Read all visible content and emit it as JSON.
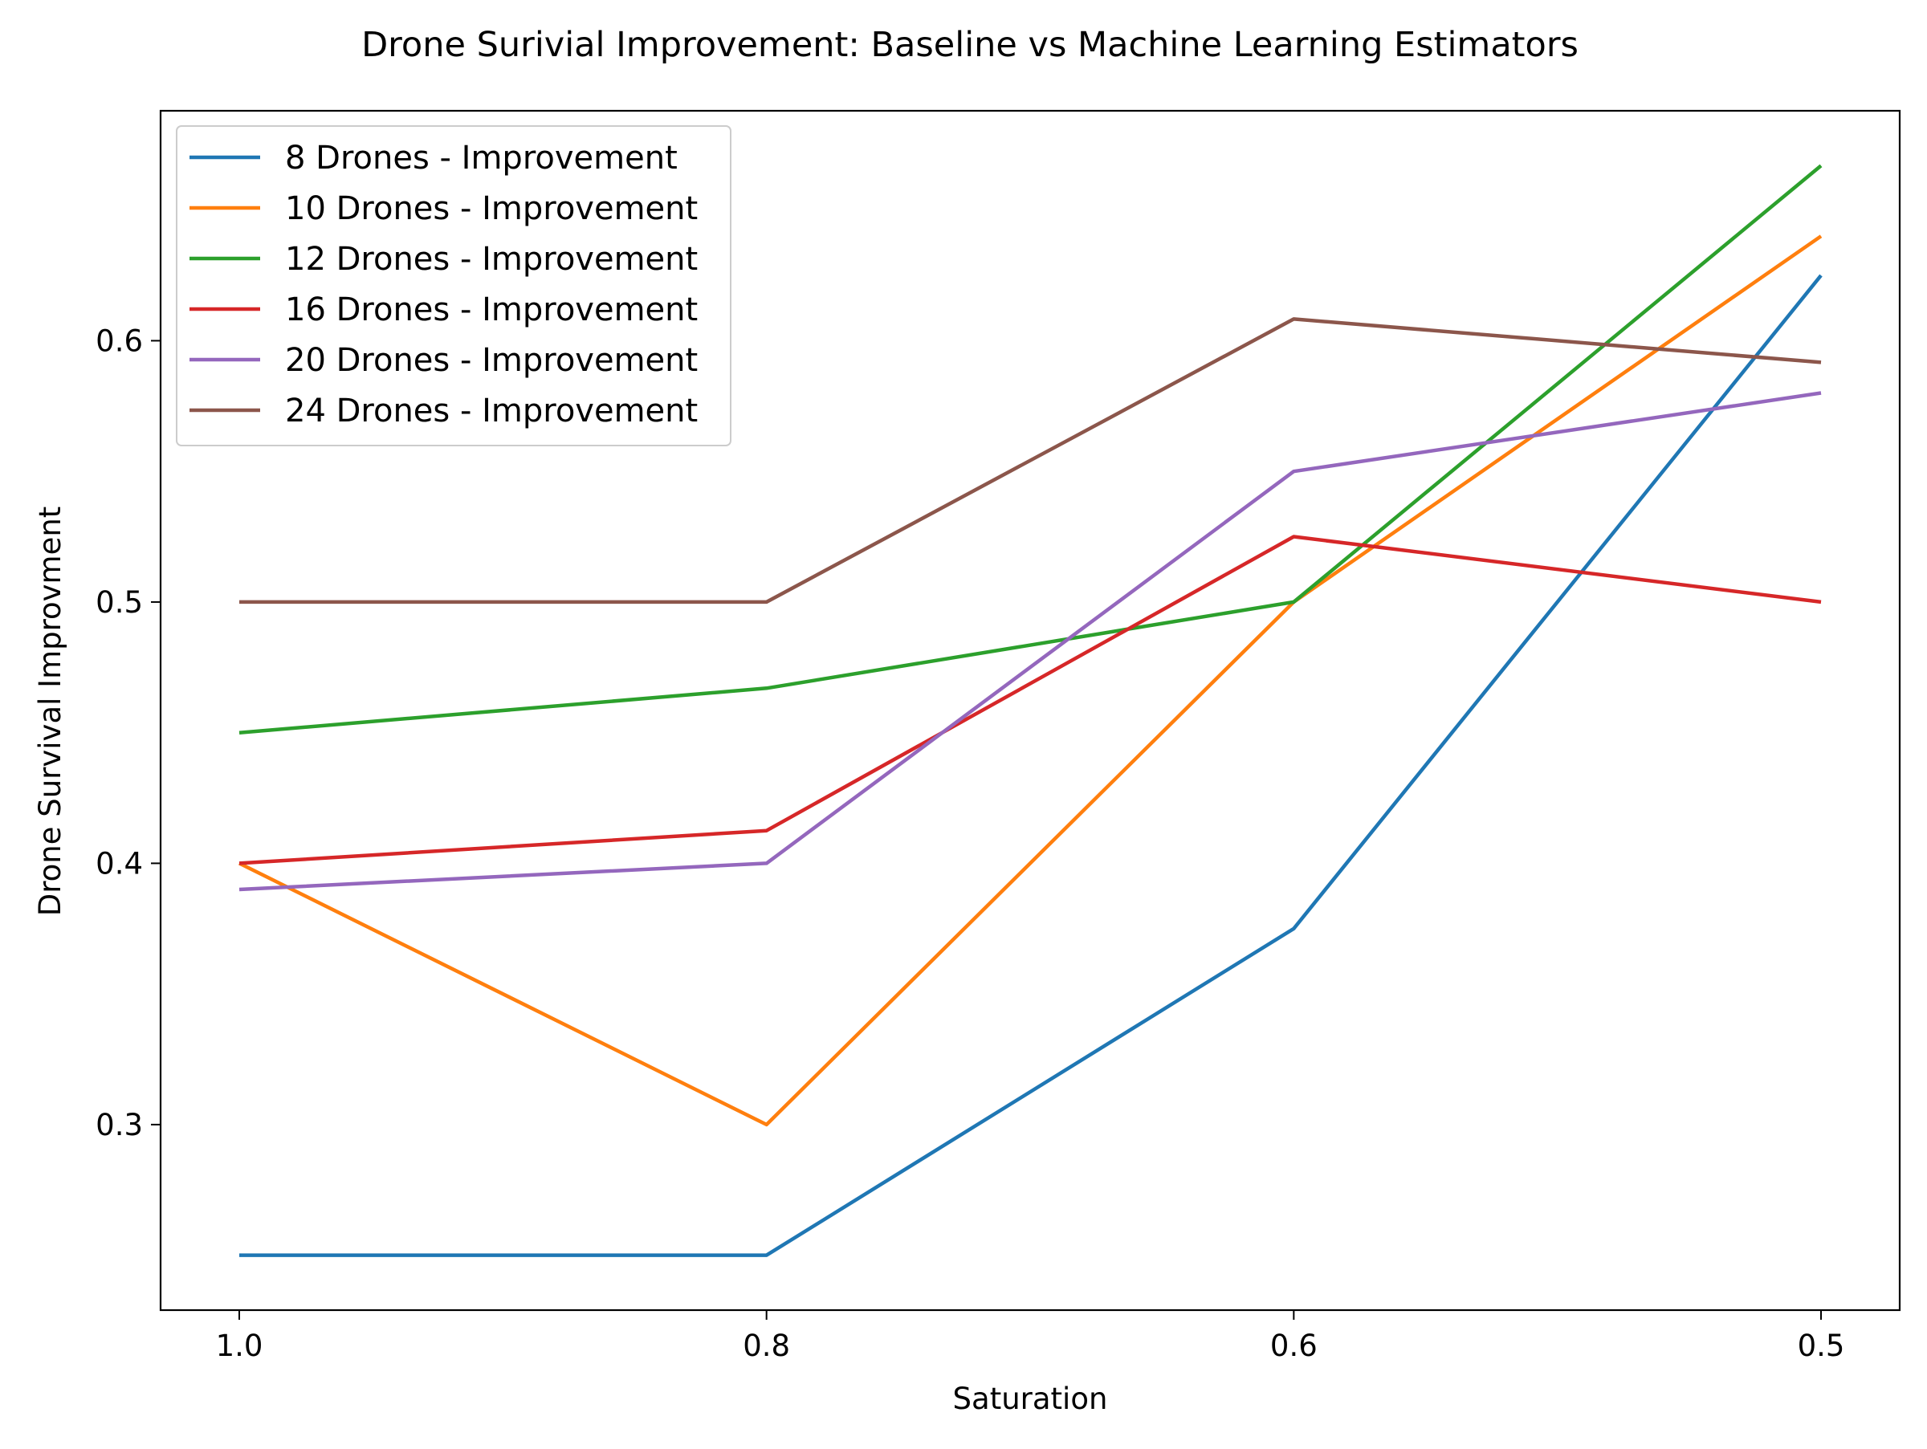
{
  "chart_data": {
    "type": "line",
    "title": "Drone Surivial Improvement: Baseline vs Machine Learning Estimators",
    "xlabel": "Saturation",
    "ylabel": "Drone Survival Improvment",
    "categories": [
      "1.0",
      "0.8",
      "0.6",
      "0.5"
    ],
    "ylim": [
      0.229,
      0.688
    ],
    "yticks": [
      0.3,
      0.4,
      0.5,
      0.6
    ],
    "yticklabels": [
      "0.3",
      "0.4",
      "0.5",
      "0.6"
    ],
    "grid": false,
    "legend_position": "top-left",
    "series": [
      {
        "name": "8 Drones - Improvement",
        "color": "#1f77b4",
        "values": [
          0.25,
          0.25,
          0.375,
          0.625
        ]
      },
      {
        "name": "10 Drones - Improvement",
        "color": "#ff7f0e",
        "values": [
          0.4,
          0.3,
          0.5,
          0.64
        ]
      },
      {
        "name": "12 Drones - Improvement",
        "color": "#2ca02c",
        "values": [
          0.45,
          0.467,
          0.5,
          0.667
        ]
      },
      {
        "name": "16 Drones - Improvement",
        "color": "#d62728",
        "values": [
          0.4,
          0.4125,
          0.525,
          0.5
        ]
      },
      {
        "name": "20 Drones - Improvement",
        "color": "#9467bd",
        "values": [
          0.39,
          0.4,
          0.55,
          0.58
        ]
      },
      {
        "name": "24 Drones - Improvement",
        "color": "#8c564b",
        "values": [
          0.5,
          0.5,
          0.6083,
          0.5917
        ]
      }
    ]
  }
}
